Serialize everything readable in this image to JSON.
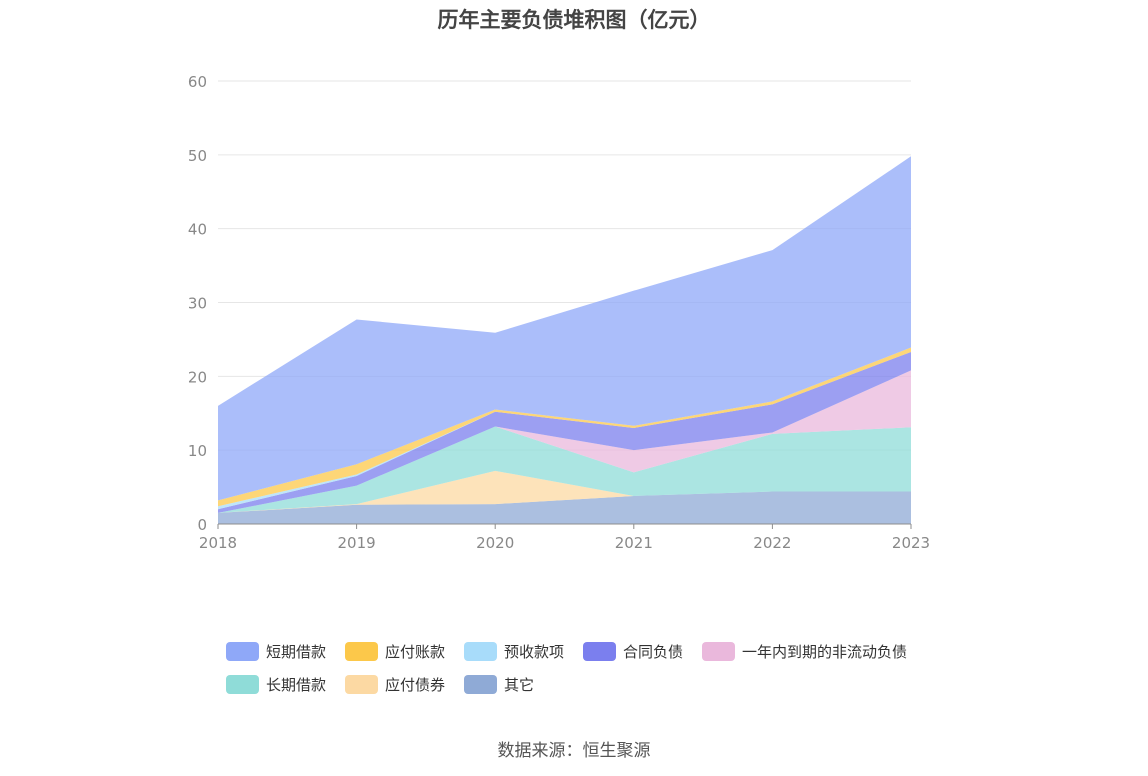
{
  "title": "历年主要负债堆积图（亿元）",
  "source": "数据来源：恒生聚源",
  "chart_data": {
    "type": "area",
    "stacked": true,
    "x": [
      "2018",
      "2019",
      "2020",
      "2021",
      "2022",
      "2023"
    ],
    "ylim": [
      0,
      60
    ],
    "yticks": [
      "0",
      "10",
      "20",
      "30",
      "40",
      "50",
      "60"
    ],
    "grid": true,
    "legend_position": "bottom",
    "series": [
      {
        "name": "其它",
        "color": "#8faad6",
        "values": [
          1.5,
          2.6,
          2.7,
          3.8,
          4.4,
          4.4
        ]
      },
      {
        "name": "应付债券",
        "color": "#fcd9a3",
        "values": [
          0,
          0.1,
          4.5,
          0,
          0,
          0
        ]
      },
      {
        "name": "长期借款",
        "color": "#8fdcd8",
        "values": [
          0,
          2.5,
          6.0,
          3.2,
          7.8,
          8.7
        ]
      },
      {
        "name": "一年内到期的非流动负债",
        "color": "#eab8dc",
        "values": [
          0,
          0,
          0,
          3.0,
          0.2,
          7.7
        ]
      },
      {
        "name": "合同负债",
        "color": "#7b7fee",
        "values": [
          0.5,
          1.3,
          2.0,
          3.0,
          3.8,
          2.5
        ]
      },
      {
        "name": "预收款项",
        "color": "#a8dcfa",
        "values": [
          0.4,
          0.2,
          0,
          0,
          0,
          0
        ]
      },
      {
        "name": "应付账款",
        "color": "#fcc84a",
        "values": [
          0.8,
          1.4,
          0.3,
          0.3,
          0.4,
          0.6
        ]
      },
      {
        "name": "短期借款",
        "color": "#8fa8f8",
        "values": [
          12.8,
          19.6,
          10.4,
          18.3,
          20.5,
          25.9
        ]
      }
    ]
  },
  "legend": {
    "items": [
      {
        "label": "短期借款",
        "color": "#8fa8f8"
      },
      {
        "label": "应付账款",
        "color": "#fcc84a"
      },
      {
        "label": "预收款项",
        "color": "#a8dcfa"
      },
      {
        "label": "合同负债",
        "color": "#7b7fee"
      },
      {
        "label": "一年内到期的非流动负债",
        "color": "#eab8dc"
      },
      {
        "label": "长期借款",
        "color": "#8fdcd8"
      },
      {
        "label": "应付债券",
        "color": "#fcd9a3"
      },
      {
        "label": "其它",
        "color": "#8faad6"
      }
    ]
  }
}
